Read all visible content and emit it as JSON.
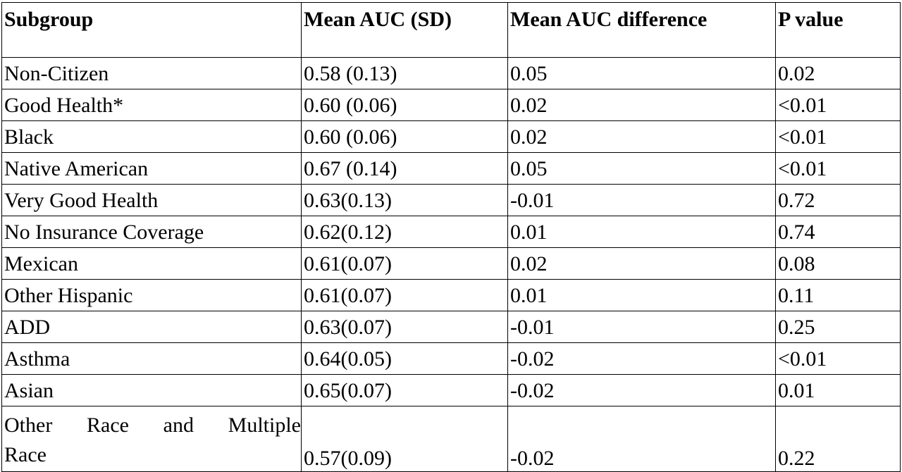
{
  "table": {
    "headers": [
      "Subgroup",
      "Mean AUC (SD)",
      "Mean AUC difference",
      "P value"
    ],
    "rows": [
      {
        "subgroup": "Non-Citizen",
        "mean_auc": " 0.58 (0.13)",
        "diff": "0.05",
        "p": "0.02"
      },
      {
        "subgroup": "Good Health*",
        "mean_auc": " 0.60 (0.06)",
        "diff": "0.02",
        "p": "<0.01"
      },
      {
        "subgroup": "Black",
        "mean_auc": " 0.60 (0.06)",
        "diff": "0.02",
        "p": "<0.01"
      },
      {
        "subgroup": "Native American",
        "mean_auc": " 0.67 (0.14)",
        "diff": "0.05",
        "p": "<0.01"
      },
      {
        "subgroup": "Very Good Health",
        "mean_auc": " 0.63(0.13)",
        "diff": "-0.01",
        "p": "0.72"
      },
      {
        "subgroup": "No Insurance Coverage",
        "mean_auc": " 0.62(0.12)",
        "diff": "0.01",
        "p": "0.74"
      },
      {
        "subgroup": "Mexican",
        "mean_auc": " 0.61(0.07)",
        "diff": "0.02",
        "p": "0.08"
      },
      {
        "subgroup": "Other Hispanic",
        "mean_auc": " 0.61(0.07)",
        "diff": "0.01",
        "p": "0.11"
      },
      {
        "subgroup": "ADD",
        "mean_auc": " 0.63(0.07)",
        "diff": "-0.01",
        "p": "0.25"
      },
      {
        "subgroup": "Asthma",
        "mean_auc": " 0.64(0.05)",
        "diff": "-0.02",
        "p": "<0.01"
      },
      {
        "subgroup": "Asian",
        "mean_auc": " 0.65(0.07)",
        "diff": "-0.02",
        "p": "0.01"
      }
    ],
    "last_row": {
      "subgroup_line1": "Other Race and Multiple",
      "subgroup_line2": "Race",
      "mean_auc": "0.57(0.09)",
      "diff": "-0.02",
      "p": "0.22"
    }
  }
}
